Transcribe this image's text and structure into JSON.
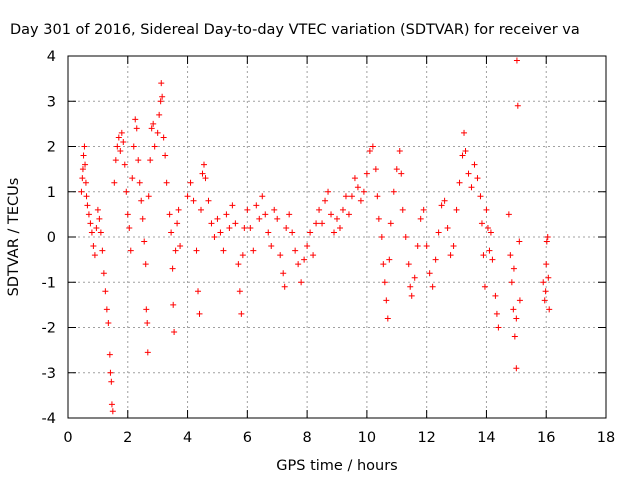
{
  "chart_data": {
    "type": "scatter",
    "title": "Day 301 of 2016, Sidereal Day-to-day VTEC variation (SDTVAR) for receiver va",
    "xlabel": "GPS time / hours",
    "ylabel": "SDTVAR / TECUs",
    "xlim": [
      0,
      18
    ],
    "ylim": [
      -4,
      4
    ],
    "xticks": [
      0,
      2,
      4,
      6,
      8,
      10,
      12,
      14,
      16,
      18
    ],
    "yticks": [
      -4,
      -3,
      -2,
      -1,
      0,
      1,
      2,
      3,
      4
    ],
    "grid": true,
    "marker": "+",
    "colors": {
      "series": "#ff0000",
      "grid": "#a0a0a0",
      "axis": "#000000"
    },
    "series": [
      {
        "name": "SDTVAR",
        "points": [
          [
            0.45,
            1.0
          ],
          [
            0.48,
            1.3
          ],
          [
            0.5,
            1.5
          ],
          [
            0.52,
            1.8
          ],
          [
            0.55,
            2.0
          ],
          [
            0.57,
            1.6
          ],
          [
            0.6,
            1.2
          ],
          [
            0.62,
            0.9
          ],
          [
            0.65,
            0.7
          ],
          [
            0.7,
            0.5
          ],
          [
            0.75,
            0.3
          ],
          [
            0.8,
            0.1
          ],
          [
            0.85,
            -0.2
          ],
          [
            0.9,
            -0.4
          ],
          [
            0.95,
            0.2
          ],
          [
            1.0,
            0.6
          ],
          [
            1.05,
            0.4
          ],
          [
            1.1,
            0.1
          ],
          [
            1.15,
            -0.3
          ],
          [
            1.2,
            -0.8
          ],
          [
            1.25,
            -1.2
          ],
          [
            1.3,
            -1.6
          ],
          [
            1.35,
            -1.9
          ],
          [
            1.4,
            -2.6
          ],
          [
            1.42,
            -3.0
          ],
          [
            1.45,
            -3.2
          ],
          [
            1.47,
            -3.7
          ],
          [
            1.5,
            -3.85
          ],
          [
            1.55,
            1.2
          ],
          [
            1.6,
            1.7
          ],
          [
            1.65,
            2.0
          ],
          [
            1.7,
            2.2
          ],
          [
            1.75,
            1.9
          ],
          [
            1.8,
            2.3
          ],
          [
            1.85,
            2.1
          ],
          [
            1.9,
            1.6
          ],
          [
            1.95,
            1.0
          ],
          [
            2.0,
            0.5
          ],
          [
            2.05,
            0.2
          ],
          [
            2.1,
            -0.3
          ],
          [
            2.15,
            1.3
          ],
          [
            2.2,
            2.0
          ],
          [
            2.25,
            2.6
          ],
          [
            2.3,
            2.4
          ],
          [
            2.35,
            1.7
          ],
          [
            2.4,
            1.2
          ],
          [
            2.45,
            0.8
          ],
          [
            2.5,
            0.4
          ],
          [
            2.55,
            -0.1
          ],
          [
            2.6,
            -0.6
          ],
          [
            2.62,
            -1.6
          ],
          [
            2.65,
            -1.9
          ],
          [
            2.67,
            -2.55
          ],
          [
            2.7,
            0.9
          ],
          [
            2.75,
            1.7
          ],
          [
            2.8,
            2.4
          ],
          [
            2.85,
            2.5
          ],
          [
            2.9,
            2.0
          ],
          [
            3.0,
            2.3
          ],
          [
            3.05,
            2.7
          ],
          [
            3.1,
            3.0
          ],
          [
            3.12,
            3.4
          ],
          [
            3.15,
            3.1
          ],
          [
            3.2,
            2.2
          ],
          [
            3.25,
            1.8
          ],
          [
            3.3,
            1.2
          ],
          [
            3.4,
            0.5
          ],
          [
            3.45,
            0.1
          ],
          [
            3.5,
            -0.7
          ],
          [
            3.52,
            -1.5
          ],
          [
            3.55,
            -2.1
          ],
          [
            3.6,
            -0.3
          ],
          [
            3.65,
            0.3
          ],
          [
            3.7,
            0.6
          ],
          [
            3.75,
            -0.2
          ],
          [
            4.0,
            0.9
          ],
          [
            4.1,
            1.2
          ],
          [
            4.2,
            0.8
          ],
          [
            4.3,
            -0.3
          ],
          [
            4.35,
            -1.2
          ],
          [
            4.4,
            -1.7
          ],
          [
            4.45,
            0.6
          ],
          [
            4.5,
            1.4
          ],
          [
            4.55,
            1.6
          ],
          [
            4.6,
            1.3
          ],
          [
            4.7,
            0.8
          ],
          [
            4.8,
            0.3
          ],
          [
            4.9,
            0.0
          ],
          [
            5.0,
            0.4
          ],
          [
            5.1,
            0.1
          ],
          [
            5.2,
            -0.3
          ],
          [
            5.3,
            0.5
          ],
          [
            5.4,
            0.2
          ],
          [
            5.5,
            0.7
          ],
          [
            5.6,
            0.3
          ],
          [
            5.7,
            -0.6
          ],
          [
            5.75,
            -1.2
          ],
          [
            5.8,
            -1.7
          ],
          [
            5.85,
            -0.4
          ],
          [
            5.9,
            0.2
          ],
          [
            6.0,
            0.6
          ],
          [
            6.1,
            0.2
          ],
          [
            6.2,
            -0.3
          ],
          [
            6.3,
            0.7
          ],
          [
            6.4,
            0.4
          ],
          [
            6.5,
            0.9
          ],
          [
            6.6,
            0.5
          ],
          [
            6.7,
            0.1
          ],
          [
            6.8,
            -0.2
          ],
          [
            6.9,
            0.6
          ],
          [
            7.0,
            0.4
          ],
          [
            7.1,
            -0.4
          ],
          [
            7.2,
            -0.8
          ],
          [
            7.25,
            -1.1
          ],
          [
            7.3,
            0.2
          ],
          [
            7.4,
            0.5
          ],
          [
            7.5,
            0.1
          ],
          [
            7.6,
            -0.3
          ],
          [
            7.7,
            -0.6
          ],
          [
            7.8,
            -1.0
          ],
          [
            7.9,
            -0.5
          ],
          [
            8.0,
            -0.2
          ],
          [
            8.1,
            0.1
          ],
          [
            8.2,
            -0.4
          ],
          [
            8.3,
            0.3
          ],
          [
            8.4,
            0.6
          ],
          [
            8.5,
            0.3
          ],
          [
            8.6,
            0.8
          ],
          [
            8.7,
            1.0
          ],
          [
            8.8,
            0.5
          ],
          [
            8.9,
            0.1
          ],
          [
            9.0,
            0.4
          ],
          [
            9.1,
            0.2
          ],
          [
            9.2,
            0.6
          ],
          [
            9.3,
            0.9
          ],
          [
            9.4,
            0.5
          ],
          [
            9.5,
            0.9
          ],
          [
            9.6,
            1.3
          ],
          [
            9.7,
            1.1
          ],
          [
            9.8,
            0.8
          ],
          [
            9.9,
            1.0
          ],
          [
            10.0,
            1.4
          ],
          [
            10.1,
            1.9
          ],
          [
            10.2,
            2.0
          ],
          [
            10.3,
            1.5
          ],
          [
            10.35,
            0.9
          ],
          [
            10.4,
            0.4
          ],
          [
            10.5,
            0.0
          ],
          [
            10.55,
            -0.6
          ],
          [
            10.6,
            -1.0
          ],
          [
            10.65,
            -1.4
          ],
          [
            10.7,
            -1.8
          ],
          [
            10.75,
            -0.5
          ],
          [
            10.8,
            0.3
          ],
          [
            10.9,
            1.0
          ],
          [
            11.0,
            1.5
          ],
          [
            11.1,
            1.9
          ],
          [
            11.15,
            1.4
          ],
          [
            11.2,
            0.6
          ],
          [
            11.3,
            0.0
          ],
          [
            11.4,
            -0.6
          ],
          [
            11.45,
            -1.1
          ],
          [
            11.5,
            -1.3
          ],
          [
            11.6,
            -0.9
          ],
          [
            11.7,
            -0.2
          ],
          [
            11.8,
            0.4
          ],
          [
            11.9,
            0.6
          ],
          [
            12.0,
            -0.2
          ],
          [
            12.1,
            -0.8
          ],
          [
            12.2,
            -1.1
          ],
          [
            12.3,
            -0.5
          ],
          [
            12.4,
            0.1
          ],
          [
            12.5,
            0.7
          ],
          [
            12.6,
            0.8
          ],
          [
            12.7,
            0.2
          ],
          [
            12.8,
            -0.4
          ],
          [
            12.9,
            -0.2
          ],
          [
            13.0,
            0.6
          ],
          [
            13.1,
            1.2
          ],
          [
            13.2,
            1.8
          ],
          [
            13.25,
            2.3
          ],
          [
            13.3,
            1.9
          ],
          [
            13.4,
            1.4
          ],
          [
            13.5,
            1.1
          ],
          [
            13.6,
            1.6
          ],
          [
            13.7,
            1.3
          ],
          [
            13.8,
            0.9
          ],
          [
            13.85,
            0.3
          ],
          [
            13.9,
            -0.4
          ],
          [
            13.95,
            -1.1
          ],
          [
            14.0,
            0.6
          ],
          [
            14.05,
            0.2
          ],
          [
            14.1,
            -0.3
          ],
          [
            14.15,
            0.1
          ],
          [
            14.2,
            -0.5
          ],
          [
            14.3,
            -1.3
          ],
          [
            14.35,
            -1.7
          ],
          [
            14.4,
            -2.0
          ],
          [
            14.75,
            0.5
          ],
          [
            14.8,
            -0.4
          ],
          [
            14.85,
            -1.0
          ],
          [
            14.9,
            -1.6
          ],
          [
            14.95,
            -2.2
          ],
          [
            15.0,
            -2.9
          ],
          [
            15.02,
            3.9
          ],
          [
            15.05,
            2.9
          ],
          [
            15.1,
            -0.1
          ],
          [
            15.12,
            -1.4
          ],
          [
            15.0,
            -1.8
          ],
          [
            14.92,
            -0.7
          ],
          [
            15.9,
            -1.0
          ],
          [
            15.95,
            -1.4
          ],
          [
            16.0,
            -0.6
          ],
          [
            16.02,
            -0.1
          ],
          [
            16.05,
            0.0
          ],
          [
            16.07,
            -0.9
          ],
          [
            16.1,
            -1.6
          ],
          [
            15.98,
            -1.2
          ]
        ]
      }
    ]
  }
}
